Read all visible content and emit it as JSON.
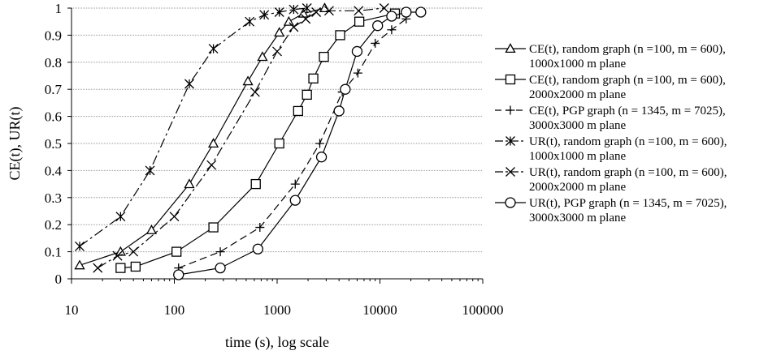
{
  "chart_data": {
    "type": "line",
    "xlabel": "time (s), log scale",
    "ylabel": "CE(t), UR(t)",
    "x_scale": "log",
    "xlim": [
      10,
      100000
    ],
    "ylim": [
      0,
      1
    ],
    "x_ticks": [
      "10",
      "100",
      "1000",
      "10000",
      "100000"
    ],
    "y_ticks": [
      "0",
      "0.1",
      "0.2",
      "0.3",
      "0.4",
      "0.5",
      "0.6",
      "0.7",
      "0.8",
      "0.9",
      "1"
    ],
    "grid": "horizontal",
    "legend_position": "right",
    "series": [
      {
        "name": "CE(t), random graph (n =100, m = 600),",
        "name_line2": "1000x1000 m plane",
        "marker": "triangle",
        "dash": "solid",
        "points": [
          [
            12,
            0.05
          ],
          [
            30,
            0.1
          ],
          [
            60,
            0.18
          ],
          [
            140,
            0.35
          ],
          [
            240,
            0.5
          ],
          [
            520,
            0.73
          ],
          [
            720,
            0.82
          ],
          [
            1050,
            0.91
          ],
          [
            1300,
            0.95
          ],
          [
            1800,
            0.98
          ],
          [
            2900,
            1.0
          ]
        ]
      },
      {
        "name": "CE(t), random graph (n =100, m = 600),",
        "name_line2": "2000x2000 m plane",
        "marker": "square",
        "dash": "solid",
        "points": [
          [
            30,
            0.04
          ],
          [
            42,
            0.045
          ],
          [
            105,
            0.1
          ],
          [
            240,
            0.19
          ],
          [
            620,
            0.35
          ],
          [
            1050,
            0.5
          ],
          [
            1600,
            0.62
          ],
          [
            1950,
            0.68
          ],
          [
            2250,
            0.74
          ],
          [
            2850,
            0.82
          ],
          [
            4100,
            0.9
          ],
          [
            6300,
            0.95
          ],
          [
            14000,
            0.98
          ]
        ]
      },
      {
        "name": "CE(t), PGP graph (n = 1345, m = 7025),",
        "name_line2": "3000x3000 m plane",
        "marker": "plus",
        "dash": "dashed",
        "points": [
          [
            110,
            0.04
          ],
          [
            280,
            0.1
          ],
          [
            680,
            0.19
          ],
          [
            1500,
            0.35
          ],
          [
            2600,
            0.5
          ],
          [
            4300,
            0.69
          ],
          [
            6100,
            0.76
          ],
          [
            9000,
            0.87
          ],
          [
            13000,
            0.92
          ],
          [
            18000,
            0.96
          ]
        ]
      },
      {
        "name": "UR(t), random graph (n =100, m = 600),",
        "name_line2": "1000x1000 m plane",
        "marker": "asterisk",
        "dash": "dashdot",
        "points": [
          [
            12,
            0.12
          ],
          [
            30,
            0.23
          ],
          [
            58,
            0.4
          ],
          [
            140,
            0.72
          ],
          [
            240,
            0.85
          ],
          [
            540,
            0.95
          ],
          [
            750,
            0.975
          ],
          [
            1050,
            0.985
          ],
          [
            1450,
            0.995
          ],
          [
            1950,
            1.0
          ]
        ]
      },
      {
        "name": "UR(t), random graph (n =100, m = 600),",
        "name_line2": "2000x2000 m plane",
        "marker": "x",
        "dash": "dashdot",
        "points": [
          [
            18,
            0.04
          ],
          [
            28,
            0.085
          ],
          [
            40,
            0.1
          ],
          [
            100,
            0.23
          ],
          [
            230,
            0.42
          ],
          [
            610,
            0.69
          ],
          [
            1000,
            0.84
          ],
          [
            1450,
            0.93
          ],
          [
            1900,
            0.96
          ],
          [
            2400,
            0.985
          ],
          [
            3200,
            0.99
          ],
          [
            6200,
            0.99
          ],
          [
            11000,
            1.0
          ]
        ]
      },
      {
        "name": "UR(t), PGP graph (n = 1345, m = 7025),",
        "name_line2": "3000x3000 m plane",
        "marker": "circle",
        "dash": "solid",
        "points": [
          [
            110,
            0.015
          ],
          [
            280,
            0.04
          ],
          [
            650,
            0.11
          ],
          [
            1500,
            0.29
          ],
          [
            2700,
            0.45
          ],
          [
            4000,
            0.62
          ],
          [
            4600,
            0.7
          ],
          [
            6000,
            0.84
          ],
          [
            9500,
            0.935
          ],
          [
            13000,
            0.97
          ],
          [
            18000,
            0.985
          ],
          [
            25000,
            0.985
          ]
        ]
      }
    ]
  }
}
